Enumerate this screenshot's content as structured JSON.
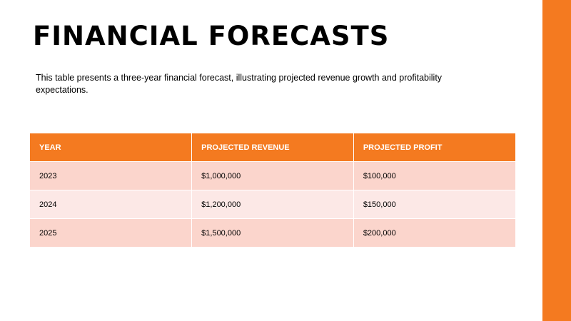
{
  "slide": {
    "title": "FINANCIAL FORECASTS",
    "description": "This table presents a three-year financial forecast, illustrating projected revenue growth and profitability expectations."
  },
  "table": {
    "headers": [
      "YEAR",
      "PROJECTED REVENUE",
      "PROJECTED PROFIT"
    ],
    "rows": [
      [
        "2023",
        "$1,000,000",
        "$100,000"
      ],
      [
        "2024",
        "$1,200,000",
        "$150,000"
      ],
      [
        "2025",
        "$1,500,000",
        "$200,000"
      ]
    ]
  },
  "colors": {
    "accent": "#f47a20",
    "row_dark": "#fbd5cc",
    "row_light": "#fce8e6"
  }
}
